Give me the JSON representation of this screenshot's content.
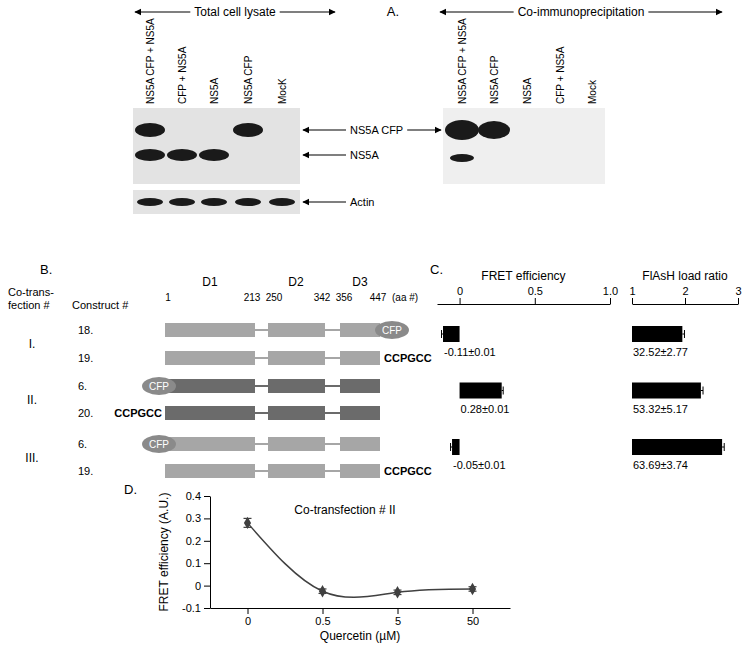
{
  "panels": [
    "A.",
    "B.",
    "C.",
    "D."
  ],
  "blot": {
    "headers": [
      "Total cell lysate",
      "Co-immunoprecipitation"
    ],
    "lysate_lanes": [
      "NS5A CFP + NS5A",
      "CFP + NS5A",
      "NS5A",
      "NS5A CFP",
      "MocK"
    ],
    "coip_lanes": [
      "NS5A CFP + NS5A",
      "NS5A CFP",
      "NS5A",
      "CFP + NS5A",
      "Mock"
    ],
    "band_labels": [
      "NS5A CFP",
      "NS5A",
      "Actin"
    ]
  },
  "diagram": {
    "header": [
      "Co-trans-",
      "fection #",
      "Construct #"
    ],
    "domains": [
      "D1",
      "D2",
      "D3"
    ],
    "aa": [
      "1",
      "213",
      "250",
      "342",
      "356",
      "447",
      "(aa #)"
    ],
    "rows": [
      {
        "label": "I.",
        "constructs": [
          {
            "number": "18.",
            "end": {
              "text": "CFP",
              "marker": "ellipse"
            },
            "color": "#a6a6a6"
          },
          {
            "number": "19.",
            "end": {
              "text": "CCPGCC"
            },
            "color": "#a6a6a6"
          }
        ]
      },
      {
        "label": "II.",
        "constructs": [
          {
            "number": "6.",
            "start": {
              "text": "CFP",
              "marker": "ellipse"
            },
            "color": "#6b6b6b"
          },
          {
            "number": "20.",
            "start": {
              "text": "CCPGCC"
            },
            "color": "#6b6b6b"
          }
        ]
      },
      {
        "label": "III.",
        "constructs": [
          {
            "number": "6.",
            "start": {
              "text": "CFP",
              "marker": "ellipse"
            },
            "color": "#a6a6a6"
          },
          {
            "number": "19.",
            "end": {
              "text": "CCPGCC"
            },
            "color": "#a6a6a6"
          }
        ]
      }
    ]
  },
  "chart_data": [
    {
      "type": "bar",
      "orientation": "horizontal",
      "title": "FRET efficiency",
      "categories": [
        null,
        null,
        null
      ],
      "values": [
        -0.11,
        0.28,
        -0.05
      ],
      "errors": [
        0.01,
        0.01,
        0.01
      ],
      "value_labels": [
        "-0.11±0.01",
        "0.28±0.01",
        "-0.05±0.01"
      ],
      "data_labels": true,
      "xlim": [
        -0.15,
        1
      ],
      "xticks": [
        0,
        0.5,
        {
          "value": 1,
          "label": "1.0"
        }
      ],
      "color": "#000000"
    },
    {
      "type": "bar",
      "orientation": "horizontal",
      "title": "FlAsH load ratio",
      "categories": [
        null,
        null,
        null
      ],
      "values": [
        1.95,
        2.3,
        2.7
      ],
      "errors": [
        0.04,
        0.04,
        0.04
      ],
      "annotations": [
        "32.52±2.77",
        "53.32±5.17",
        "63.69±3.74"
      ],
      "xlim": [
        1,
        3
      ],
      "xticks": [
        1,
        2,
        3
      ],
      "color": "#000000"
    },
    {
      "type": "line",
      "title": "Co-transfection # II",
      "x_label": "Quercetin (µM)",
      "y_label": "FRET efficiency (A.U.)",
      "categories": [
        "0",
        "0.5",
        "5",
        "50"
      ],
      "values": [
        0.28,
        -0.025,
        -0.03,
        -0.015
      ],
      "errors": [
        0.02,
        0.01,
        0.01,
        0.01
      ],
      "ylim": [
        -0.1,
        0.4
      ],
      "yticks": [
        -0.1,
        0,
        0.1,
        0.2,
        0.3,
        0.4
      ],
      "marker": "diamond",
      "color": "#404040"
    }
  ]
}
